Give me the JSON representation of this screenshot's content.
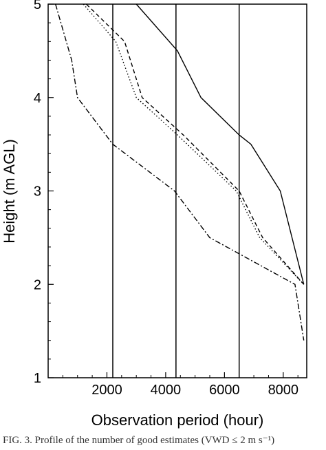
{
  "chart_data": {
    "type": "line",
    "xlabel": "Observation period (hour)",
    "ylabel": "Height (m AGL)",
    "xlim": [
      0,
      8800
    ],
    "ylim": [
      1,
      5
    ],
    "xticks": [
      2000,
      4000,
      6000,
      8000
    ],
    "yticks": [
      1,
      2,
      3,
      4,
      5
    ],
    "grid": false,
    "legend": "none",
    "series": [
      {
        "style": "solid",
        "x": [
          3000,
          4400,
          5200,
          6500,
          6900,
          7900,
          8700
        ],
        "y": [
          5,
          4.5,
          4.0,
          3.6,
          3.5,
          3.0,
          2.0
        ]
      },
      {
        "style": "dashed",
        "x": [
          1300,
          2600,
          3200,
          4600,
          6500,
          7300,
          8700
        ],
        "y": [
          5,
          4.6,
          4.0,
          3.6,
          3.0,
          2.5,
          2.0
        ]
      },
      {
        "style": "dotted",
        "x": [
          1200,
          2300,
          3000,
          4400,
          6400,
          7200,
          8700
        ],
        "y": [
          5,
          4.6,
          4.0,
          3.6,
          3.0,
          2.5,
          2.0
        ]
      },
      {
        "style": "dashdot",
        "x": [
          250,
          800,
          1000,
          2200,
          4300,
          5500,
          8400,
          8700
        ],
        "y": [
          5,
          4.4,
          4.0,
          3.5,
          3.0,
          2.5,
          2.0,
          1.4
        ]
      }
    ],
    "vlines": [
      2200,
      4350,
      6500
    ]
  },
  "caption": "FIG. 3. Profile of the number of good estimates (VWD ≤ 2 m s⁻¹)"
}
